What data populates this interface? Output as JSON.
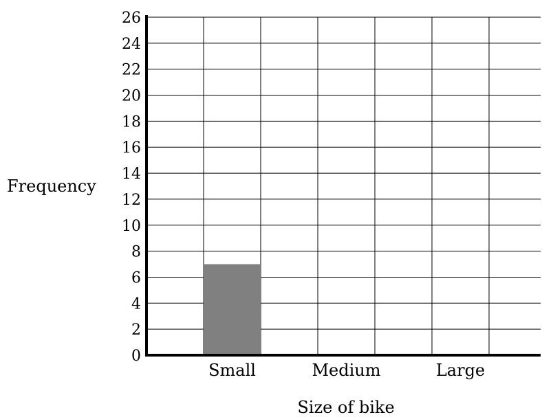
{
  "chart_data": {
    "type": "bar",
    "xlabel": "Size of bike",
    "ylabel": "Frequency",
    "categories": [
      "Small",
      "Medium",
      "Large"
    ],
    "values": [
      7,
      null,
      null
    ],
    "ylim": [
      0,
      26
    ],
    "ytick_step": 2,
    "ytick_labels": [
      "0",
      "2",
      "4",
      "6",
      "8",
      "10",
      "12",
      "14",
      "16",
      "18",
      "20",
      "22",
      "24",
      "26"
    ],
    "grid": true,
    "bar_color": "#808080"
  }
}
